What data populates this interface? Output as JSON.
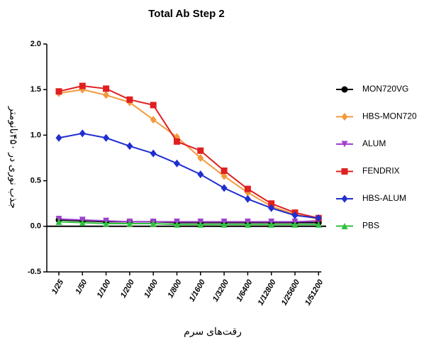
{
  "chart_data": {
    "type": "line",
    "title": "Total Ab Step 2",
    "x_label": "رقت‌های سرم",
    "y_label": "جذب نوری در ۴۵۰نانومتر",
    "categories": [
      "1/25",
      "1/50",
      "1/100",
      "1/200",
      "1/400",
      "1/800",
      "1/1600",
      "1/3200",
      "1/6400",
      "1/12800",
      "1/25600",
      "1/51200"
    ],
    "ylim": [
      -0.5,
      2.0
    ],
    "yticks": [
      -0.5,
      {
        "value": 0,
        "label": "0.0"
      },
      0.5,
      {
        "value": 1,
        "label": "1.0"
      },
      1.5,
      {
        "value": 2,
        "label": "2.0"
      }
    ],
    "series": [
      {
        "name": "MON720VG",
        "color": "#000000",
        "marker": "circle",
        "values": [
          0.07,
          0.06,
          0.05,
          0.05,
          0.05,
          0.04,
          0.04,
          0.04,
          0.04,
          0.04,
          0.04,
          0.04
        ]
      },
      {
        "name": "HBS-MON720",
        "color": "#f39a3c",
        "marker": "diamond",
        "values": [
          1.46,
          1.5,
          1.44,
          1.36,
          1.17,
          0.98,
          0.75,
          0.55,
          0.37,
          0.22,
          0.13,
          0.08
        ]
      },
      {
        "name": "ALUM",
        "color": "#a040d0",
        "marker": "triangle-down",
        "values": [
          0.08,
          0.07,
          0.06,
          0.05,
          0.05,
          0.05,
          0.05,
          0.05,
          0.05,
          0.05,
          0.05,
          0.06
        ]
      },
      {
        "name": "FENDRIX",
        "color": "#e02020",
        "marker": "square",
        "values": [
          1.48,
          1.54,
          1.51,
          1.39,
          1.33,
          0.93,
          0.83,
          0.61,
          0.41,
          0.25,
          0.15,
          0.09
        ]
      },
      {
        "name": "HBS-ALUM",
        "color": "#1f2fd0",
        "marker": "diamond",
        "values": [
          0.97,
          1.02,
          0.97,
          0.88,
          0.8,
          0.69,
          0.57,
          0.42,
          0.3,
          0.2,
          0.12,
          0.09
        ]
      },
      {
        "name": "PBS",
        "color": "#30c040",
        "marker": "triangle-up",
        "values": [
          0.05,
          0.04,
          0.03,
          0.03,
          0.03,
          0.02,
          0.02,
          0.02,
          0.02,
          0.02,
          0.02,
          0.02
        ]
      }
    ]
  }
}
